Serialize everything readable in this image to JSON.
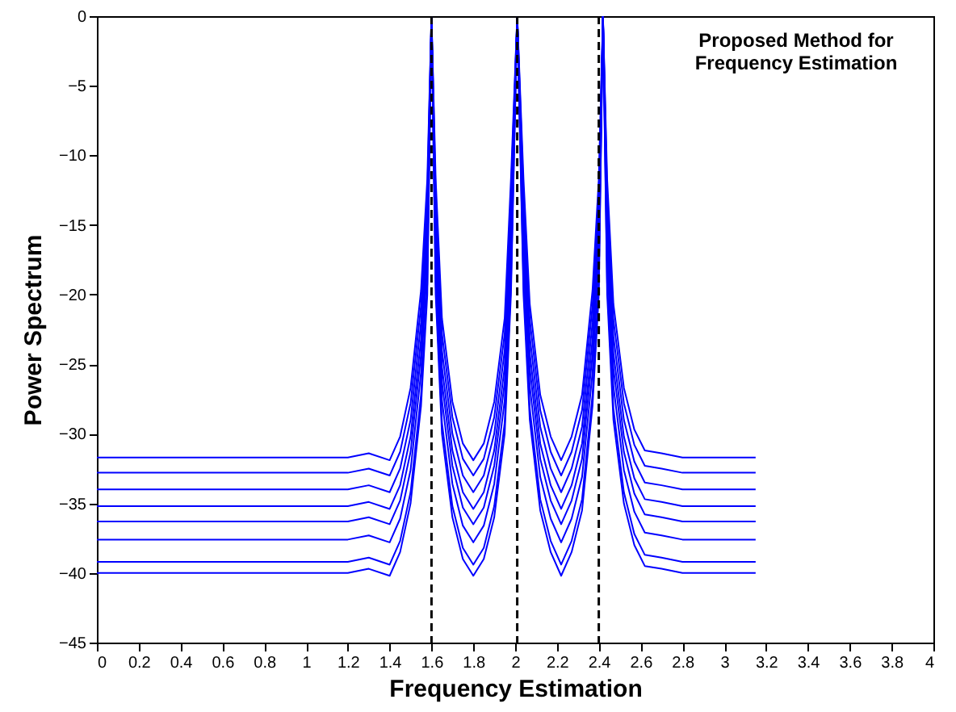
{
  "chart_data": {
    "type": "line",
    "xlabel": "Frequency Estimation",
    "ylabel": "Power Spectrum",
    "annotations": [
      "Proposed Method for\nFrequency Estimation"
    ],
    "xlim": [
      0,
      4
    ],
    "ylim": [
      -45,
      0
    ],
    "xticks": [
      0,
      0.2,
      0.4,
      0.6,
      0.8,
      1,
      1.2,
      1.4,
      1.6,
      1.8,
      2,
      2.2,
      2.4,
      2.6,
      2.8,
      3,
      3.2,
      3.4,
      3.6,
      3.8,
      4
    ],
    "yticks": [
      -45,
      -40,
      -35,
      -30,
      -25,
      -20,
      -15,
      -10,
      -5,
      0
    ],
    "grid": false,
    "marker": "none",
    "line_style": "solid",
    "ref_lines": [
      {
        "axis": "x",
        "value": 1.6,
        "color": "#000000",
        "line_style": "dashed"
      },
      {
        "axis": "x",
        "value": 2.01,
        "color": "#000000",
        "line_style": "dashed"
      },
      {
        "axis": "x",
        "value": 2.4,
        "color": "#000000",
        "line_style": "dashed"
      }
    ],
    "x": [
      0,
      0.4,
      0.8,
      1.2,
      1.3,
      1.4,
      1.45,
      1.5,
      1.55,
      1.58,
      1.6,
      1.62,
      1.65,
      1.7,
      1.75,
      1.8,
      1.85,
      1.9,
      1.95,
      1.98,
      2.01,
      2.04,
      2.07,
      2.12,
      2.17,
      2.22,
      2.27,
      2.32,
      2.37,
      2.4,
      2.42,
      2.44,
      2.47,
      2.52,
      2.57,
      2.62,
      2.7,
      2.8,
      3.0,
      3.15
    ],
    "series": [
      {
        "color": "#0000ff",
        "values": [
          -31.7,
          -31.7,
          -31.7,
          -31.7,
          -31.4,
          -31.9,
          -30.2,
          -26.7,
          -19.7,
          -11.7,
          0,
          -11.7,
          -21.7,
          -27.7,
          -30.7,
          -31.9,
          -30.7,
          -27.7,
          -21.7,
          -11.7,
          0,
          -11.7,
          -20.7,
          -27.2,
          -30.2,
          -31.9,
          -30.2,
          -27.2,
          -19.7,
          -11.7,
          0,
          -11.7,
          -20.7,
          -26.7,
          -29.7,
          -31.2,
          -31.4,
          -31.7,
          -31.7,
          -31.7
        ]
      },
      {
        "color": "#0000ff",
        "values": [
          -32.8,
          -32.8,
          -32.8,
          -32.8,
          -32.5,
          -33.0,
          -31.3,
          -27.8,
          -20.8,
          -12.8,
          0,
          -12.8,
          -22.8,
          -28.8,
          -31.8,
          -33.0,
          -31.8,
          -28.8,
          -22.8,
          -12.8,
          0,
          -12.8,
          -21.8,
          -28.3,
          -31.3,
          -33.0,
          -31.3,
          -28.3,
          -20.8,
          -12.8,
          0,
          -12.8,
          -21.8,
          -27.8,
          -30.8,
          -32.3,
          -32.5,
          -32.8,
          -32.8,
          -32.8
        ]
      },
      {
        "color": "#0000ff",
        "values": [
          -34,
          -34,
          -34,
          -34,
          -33.7,
          -34.2,
          -32.5,
          -29,
          -22,
          -14,
          0,
          -14,
          -24,
          -30,
          -33,
          -34.2,
          -33,
          -30,
          -24,
          -14,
          0,
          -14,
          -23,
          -29.5,
          -32.5,
          -34.2,
          -32.5,
          -29.5,
          -22,
          -14,
          0,
          -14,
          -23,
          -29,
          -32,
          -33.5,
          -33.7,
          -34,
          -34,
          -34
        ]
      },
      {
        "color": "#0000ff",
        "values": [
          -35.2,
          -35.2,
          -35.2,
          -35.2,
          -34.9,
          -35.4,
          -33.7,
          -30.2,
          -23.2,
          -15.2,
          0,
          -15.2,
          -25.2,
          -31.2,
          -34.2,
          -35.4,
          -34.2,
          -31.2,
          -25.2,
          -15.2,
          0,
          -15.2,
          -24.2,
          -30.7,
          -33.7,
          -35.4,
          -33.7,
          -30.7,
          -23.2,
          -15.2,
          0,
          -15.2,
          -24.2,
          -30.2,
          -33.2,
          -34.7,
          -34.9,
          -35.2,
          -35.2,
          -35.2
        ]
      },
      {
        "color": "#0000ff",
        "values": [
          -36.3,
          -36.3,
          -36.3,
          -36.3,
          -36,
          -36.5,
          -34.8,
          -31.3,
          -24.3,
          -16.3,
          0,
          -16.3,
          -26.3,
          -32.3,
          -35.3,
          -36.5,
          -35.3,
          -32.3,
          -26.3,
          -16.3,
          0,
          -16.3,
          -25.3,
          -31.8,
          -34.8,
          -36.5,
          -34.8,
          -31.8,
          -24.3,
          -16.3,
          0,
          -16.3,
          -25.3,
          -31.3,
          -34.3,
          -35.8,
          -36,
          -36.3,
          -36.3,
          -36.3
        ]
      },
      {
        "color": "#0000ff",
        "values": [
          -37.6,
          -37.6,
          -37.6,
          -37.6,
          -37.3,
          -37.8,
          -36.1,
          -32.6,
          -25.6,
          -17.6,
          0,
          -17.6,
          -27.6,
          -33.6,
          -36.6,
          -37.8,
          -36.6,
          -33.6,
          -27.6,
          -17.6,
          0,
          -17.6,
          -26.6,
          -33.1,
          -36.1,
          -37.8,
          -36.1,
          -33.1,
          -25.6,
          -17.6,
          0,
          -17.6,
          -26.6,
          -32.6,
          -35.6,
          -37.1,
          -37.3,
          -37.6,
          -37.6,
          -37.6
        ]
      },
      {
        "color": "#0000ff",
        "values": [
          -39.2,
          -39.2,
          -39.2,
          -39.2,
          -38.9,
          -39.4,
          -37.7,
          -34.2,
          -27.2,
          -19.2,
          0,
          -19.2,
          -29.2,
          -35.2,
          -38.2,
          -39.4,
          -38.2,
          -35.2,
          -29.2,
          -19.2,
          0,
          -19.2,
          -28.2,
          -34.7,
          -37.7,
          -39.4,
          -37.7,
          -34.7,
          -27.2,
          -19.2,
          0,
          -19.2,
          -28.2,
          -34.2,
          -37.2,
          -38.7,
          -38.9,
          -39.2,
          -39.2,
          -39.2
        ]
      },
      {
        "color": "#0000ff",
        "values": [
          -40,
          -40,
          -40,
          -40,
          -39.7,
          -40.2,
          -38.5,
          -35,
          -28,
          -20,
          0,
          -20,
          -30,
          -36,
          -39,
          -40.2,
          -39,
          -36,
          -30,
          -20,
          0,
          -20,
          -29,
          -35.5,
          -38.5,
          -40.2,
          -38.5,
          -35.5,
          -28,
          -20,
          0,
          -20,
          -29,
          -35,
          -38,
          -39.5,
          -39.7,
          -40,
          -40,
          -40
        ]
      }
    ]
  }
}
